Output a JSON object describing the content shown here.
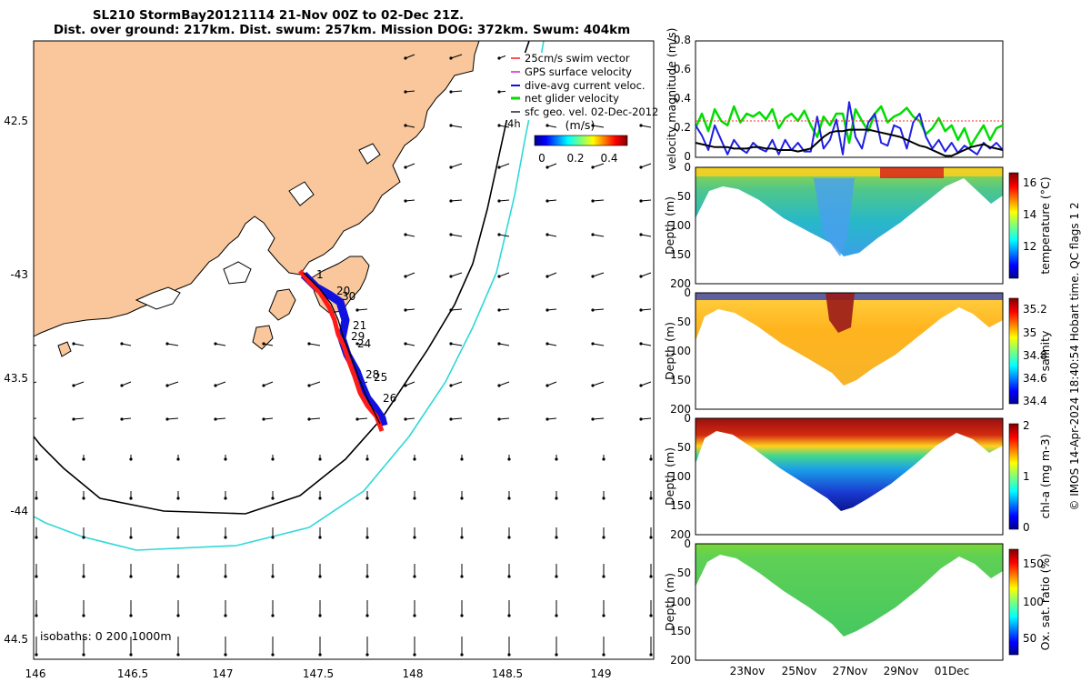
{
  "title": {
    "line1": "SL210 StormBay20121114 21-Nov 00Z to 02-Dec 21Z.",
    "line2": "Dist. over ground: 217km. Dist. swum: 257km. Mission DOG: 372km. Swum: 404km"
  },
  "map": {
    "lon_ticks": [
      "146",
      "146.5",
      "147",
      "147.5",
      "148",
      "148.5",
      "149"
    ],
    "lat_ticks": [
      "42.5",
      "-43",
      "43.5",
      "-44",
      "44.5"
    ],
    "legend": [
      "25cm/s swim vector",
      "GPS surface velocity",
      "dive-avg current veloc.",
      "net glider velocity",
      "sfc geo. vel. 02-Dec-2012"
    ],
    "legend_tag": "4h",
    "colorbar_title": "(m/s)",
    "colorbar_ticks": [
      "0",
      "0.2",
      "0.4"
    ],
    "isobaths_text": "isobaths: 0   200  1000m",
    "track_labels": [
      "1",
      "20",
      "30",
      "21",
      "29",
      "24",
      "28",
      "25",
      "26"
    ],
    "colors": {
      "land": "#f9c79b",
      "isobath_200": "#000000",
      "isobath_1000": "#2fd8d8",
      "track": "#ff1a1a",
      "current": "#1010e0"
    }
  },
  "velocity_panel": {
    "ylabel": "velocity magnitude (m/s)",
    "yticks": [
      "0",
      "0.2",
      "0.4",
      "0.6",
      "0.8"
    ]
  },
  "sections": [
    {
      "id": "temperature",
      "cb_label": "temperature (°C)",
      "cb_ticks": [
        "12",
        "14",
        "16"
      ],
      "yticks": [
        "0",
        "50",
        "100",
        "150",
        "200"
      ],
      "ylabel": "Depth (m)"
    },
    {
      "id": "salinity",
      "cb_label": "salinity",
      "cb_ticks": [
        "34.4",
        "34.6",
        "34.8",
        "35",
        "35.2"
      ],
      "yticks": [
        "0",
        "50",
        "100",
        "150",
        "200"
      ],
      "ylabel": "Depth (m)"
    },
    {
      "id": "chla",
      "cb_label": "chl-a (mg m-3)",
      "cb_ticks": [
        "0",
        "1",
        "2"
      ],
      "yticks": [
        "0",
        "50",
        "100",
        "150",
        "200"
      ],
      "ylabel": "Depth (m)"
    },
    {
      "id": "oxsat",
      "cb_label": "Ox. sat. ratio (%)",
      "cb_ticks": [
        "50",
        "100",
        "150"
      ],
      "yticks": [
        "0",
        "50",
        "100",
        "150",
        "200"
      ],
      "ylabel": "Depth (m)"
    }
  ],
  "date_ticks": [
    "23Nov",
    "25Nov",
    "27Nov",
    "29Nov",
    "01Dec"
  ],
  "footer": "© IMOS 14-Apr-2024 18:40:54 Hobart time. QC flags 1  2",
  "chart_data": [
    {
      "type": "line",
      "title": "",
      "xlabel": "",
      "ylabel": "velocity magnitude (m/s)",
      "ylim": [
        0,
        0.8
      ],
      "series": [
        {
          "name": "",
          "color": "#00dd00",
          "values": [
            0.2,
            0.3,
            0.18,
            0.33,
            0.25,
            0.22,
            0.35,
            0.24,
            0.3,
            0.28,
            0.31,
            0.26,
            0.33,
            0.2,
            0.27,
            0.3,
            0.25,
            0.32,
            0.22,
            0.14,
            0.28,
            0.22,
            0.3,
            0.3,
            0.1,
            0.33,
            0.25,
            0.18,
            0.3,
            0.35,
            0.24,
            0.28,
            0.3,
            0.34,
            0.28,
            0.25,
            0.16,
            0.2,
            0.27,
            0.18,
            0.22,
            0.12,
            0.2,
            0.08,
            0.15,
            0.22,
            0.12,
            0.2,
            0.22
          ]
        },
        {
          "name": "",
          "color": "#1f1fe6",
          "values": [
            0.22,
            0.15,
            0.05,
            0.22,
            0.12,
            0.02,
            0.12,
            0.06,
            0.03,
            0.1,
            0.06,
            0.04,
            0.12,
            0.02,
            0.12,
            0.05,
            0.1,
            0.04,
            0.04,
            0.28,
            0.06,
            0.12,
            0.26,
            0.02,
            0.38,
            0.14,
            0.06,
            0.24,
            0.3,
            0.1,
            0.08,
            0.22,
            0.2,
            0.06,
            0.24,
            0.3,
            0.14,
            0.06,
            0.12,
            0.04,
            0.1,
            0.03,
            0.08,
            0.05,
            0.02,
            0.1,
            0.06,
            0.1,
            0.05
          ]
        },
        {
          "name": "",
          "color": "#000000",
          "values": [
            0.1,
            0.09,
            0.08,
            0.07,
            0.07,
            0.07,
            0.06,
            0.06,
            0.06,
            0.07,
            0.07,
            0.06,
            0.06,
            0.05,
            0.05,
            0.05,
            0.04,
            0.05,
            0.06,
            0.1,
            0.14,
            0.17,
            0.18,
            0.18,
            0.19,
            0.19,
            0.19,
            0.19,
            0.18,
            0.17,
            0.16,
            0.15,
            0.14,
            0.12,
            0.1,
            0.08,
            0.07,
            0.05,
            0.03,
            0.01,
            0.01,
            0.03,
            0.05,
            0.07,
            0.08,
            0.09,
            0.07,
            0.06,
            0.05
          ]
        },
        {
          "name": "",
          "color": "#ff2a2a",
          "dashed": true,
          "values": [
            0.25
          ]
        }
      ]
    },
    {
      "type": "heatmap",
      "title": "",
      "x": [
        "23Nov",
        "25Nov",
        "27Nov",
        "29Nov",
        "01Dec"
      ],
      "ylabel": "Depth (m)",
      "ylim": [
        200,
        0
      ],
      "colorbar": {
        "label": "temperature (°C)",
        "range": [
          10.5,
          17
        ]
      }
    },
    {
      "type": "heatmap",
      "title": "",
      "x": [
        "23Nov",
        "25Nov",
        "27Nov",
        "29Nov",
        "01Dec"
      ],
      "ylabel": "Depth (m)",
      "ylim": [
        200,
        0
      ],
      "colorbar": {
        "label": "salinity",
        "range": [
          34.35,
          35.3
        ]
      }
    },
    {
      "type": "heatmap",
      "title": "",
      "x": [
        "23Nov",
        "25Nov",
        "27Nov",
        "29Nov",
        "01Dec"
      ],
      "ylabel": "Depth (m)",
      "ylim": [
        200,
        0
      ],
      "colorbar": {
        "label": "chl-a (mg m-3)",
        "range": [
          0,
          2
        ]
      }
    },
    {
      "type": "heatmap",
      "title": "",
      "x": [
        "23Nov",
        "25Nov",
        "27Nov",
        "29Nov",
        "01Dec"
      ],
      "ylabel": "Depth (m)",
      "ylim": [
        200,
        0
      ],
      "colorbar": {
        "label": "Ox. sat. ratio (%)",
        "range": [
          20,
          175
        ]
      }
    }
  ]
}
